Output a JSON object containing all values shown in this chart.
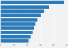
{
  "values": [
    95,
    72,
    65,
    60,
    55,
    52,
    50,
    48,
    45,
    42
  ],
  "bar_color": "#2b7bba",
  "background_color": "#f2f2f2",
  "plot_bg_color": "#f2f2f2",
  "xlim": [
    0,
    100
  ],
  "num_bars": 10,
  "xtick_color": "#888888",
  "grid_color": "#ffffff",
  "bar_height": 0.75
}
